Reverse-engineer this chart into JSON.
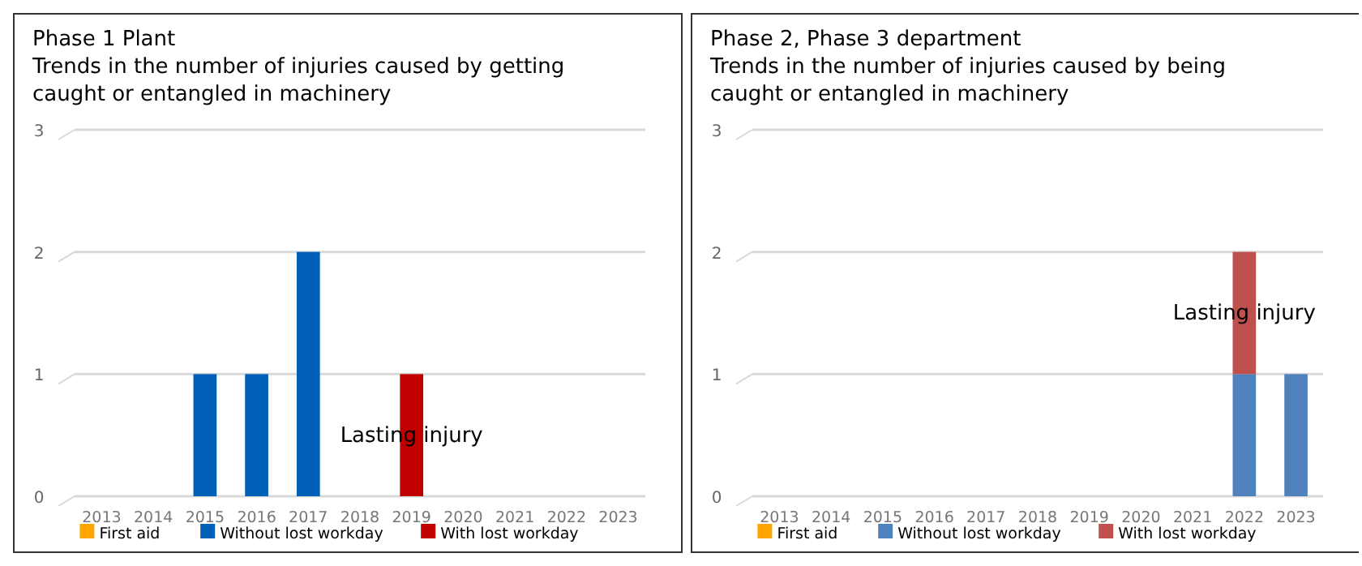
{
  "chart_data": [
    {
      "type": "bar",
      "title": "Phase 1 Plant",
      "subtitle": "Trends in the number of injuries caused by getting caught or entangled in machinery",
      "categories": [
        "2013",
        "2014",
        "2015",
        "2016",
        "2017",
        "2018",
        "2019",
        "2020",
        "2021",
        "2022",
        "2023"
      ],
      "stacked": true,
      "series": [
        {
          "name": "First aid",
          "color": "#ffa500",
          "values": [
            0,
            0,
            0,
            0,
            0,
            0,
            0,
            0,
            0,
            0,
            0
          ]
        },
        {
          "name": "Without lost workday",
          "color": "#0060b8",
          "values": [
            0,
            0,
            1,
            1,
            2,
            0,
            0,
            0,
            0,
            0,
            0
          ]
        },
        {
          "name": "With lost workday",
          "color": "#c00000",
          "values": [
            0,
            0,
            0,
            0,
            0,
            0,
            1,
            0,
            0,
            0,
            0
          ]
        }
      ],
      "ylim": [
        0,
        3
      ],
      "yticks": [
        0,
        1,
        2,
        3
      ],
      "grid": "y",
      "legend": "bottom",
      "annotations": [
        "Lasting injury"
      ]
    },
    {
      "type": "bar",
      "title": "Phase 2, Phase 3 department",
      "subtitle": "Trends in the number of injuries caused by being caught or entangled in machinery",
      "categories": [
        "2013",
        "2014",
        "2015",
        "2016",
        "2017",
        "2018",
        "2019",
        "2020",
        "2021",
        "2022",
        "2023"
      ],
      "stacked": true,
      "series": [
        {
          "name": "First aid",
          "color": "#ffa500",
          "values": [
            0,
            0,
            0,
            0,
            0,
            0,
            0,
            0,
            0,
            0,
            0
          ]
        },
        {
          "name": "Without lost workday",
          "color": "#4f81bd",
          "values": [
            0,
            0,
            0,
            0,
            0,
            0,
            0,
            0,
            0,
            1,
            1
          ]
        },
        {
          "name": "With lost workday",
          "color": "#c0504d",
          "values": [
            0,
            0,
            0,
            0,
            0,
            0,
            0,
            0,
            0,
            1,
            0
          ]
        }
      ],
      "ylim": [
        0,
        3
      ],
      "yticks": [
        0,
        1,
        2,
        3
      ],
      "grid": "y",
      "legend": "bottom",
      "annotations": [
        "Lasting injury"
      ]
    }
  ]
}
